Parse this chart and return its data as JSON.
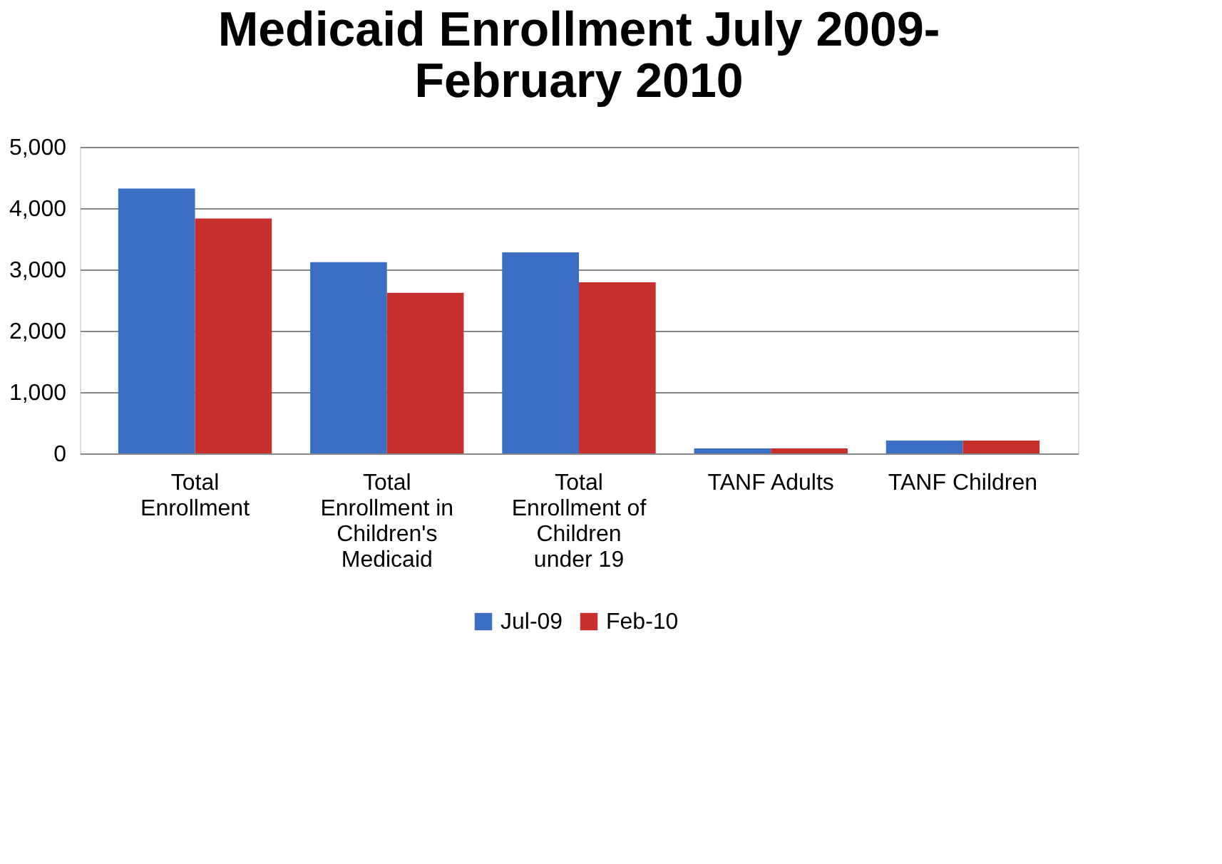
{
  "chart_data": {
    "type": "bar",
    "title": "Medicaid Enrollment July 2009-February 2010",
    "categories": [
      "Total Enrollment",
      "Total Enrollment in Children's Medicaid",
      "Total Enrollment of Children under 19",
      "TANF Adults",
      "TANF Children"
    ],
    "series": [
      {
        "name": "Jul-09",
        "color": "#3b6fc4",
        "values": [
          4320,
          3120,
          3280,
          80,
          210
        ]
      },
      {
        "name": "Feb-10",
        "color": "#c8302e",
        "values": [
          3830,
          2620,
          2790,
          80,
          210
        ]
      }
    ],
    "ylim": [
      0,
      5000
    ],
    "yticks": [
      0,
      {
        "value": 1000,
        "label": "1,000"
      },
      {
        "value": 2000,
        "label": "2,000"
      },
      {
        "value": 3000,
        "label": "3,000"
      },
      {
        "value": 4000,
        "label": "4,000"
      },
      {
        "value": 5000,
        "label": "5,000"
      }
    ],
    "grid": "y",
    "legend": "bottom"
  }
}
